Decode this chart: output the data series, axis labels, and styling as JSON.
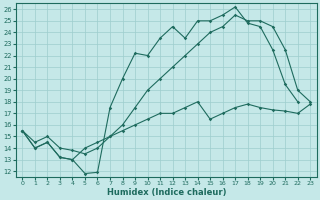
{
  "xlabel": "Humidex (Indice chaleur)",
  "xlim": [
    -0.5,
    23.5
  ],
  "ylim": [
    11.5,
    26.5
  ],
  "xticks": [
    0,
    1,
    2,
    3,
    4,
    5,
    6,
    7,
    8,
    9,
    10,
    11,
    12,
    13,
    14,
    15,
    16,
    17,
    18,
    19,
    20,
    21,
    22,
    23
  ],
  "yticks": [
    12,
    13,
    14,
    15,
    16,
    17,
    18,
    19,
    20,
    21,
    22,
    23,
    24,
    25,
    26
  ],
  "bg_color": "#c5e8e8",
  "line_color": "#1e6b5e",
  "grid_color": "#9ecece",
  "s1_x": [
    0,
    1,
    2,
    3,
    4,
    5,
    6,
    7,
    8,
    9,
    10,
    11,
    12,
    13,
    14,
    15,
    16,
    17,
    18,
    19,
    20,
    21,
    22
  ],
  "s1_y": [
    15.5,
    14.0,
    14.5,
    13.2,
    13.0,
    11.8,
    11.9,
    17.5,
    20.0,
    22.2,
    22.0,
    23.5,
    24.5,
    23.5,
    25.0,
    25.0,
    25.5,
    26.2,
    24.8,
    24.5,
    22.5,
    19.5,
    18.0
  ],
  "s2_x": [
    0,
    1,
    2,
    3,
    4,
    5,
    6,
    7,
    8,
    9,
    10,
    11,
    12,
    13,
    14,
    15,
    16,
    17,
    18,
    19,
    20,
    21,
    22,
    23
  ],
  "s2_y": [
    15.5,
    14.5,
    15.0,
    14.0,
    13.8,
    13.5,
    14.0,
    15.0,
    16.0,
    17.5,
    19.0,
    20.0,
    21.0,
    22.0,
    23.0,
    24.0,
    24.5,
    25.5,
    25.0,
    25.0,
    24.5,
    22.5,
    19.0,
    18.0
  ],
  "s3_x": [
    0,
    1,
    2,
    3,
    4,
    5,
    6,
    7,
    8,
    9,
    10,
    11,
    12,
    13,
    14,
    15,
    16,
    17,
    18,
    19,
    20,
    21,
    22,
    23
  ],
  "s3_y": [
    15.5,
    14.0,
    14.5,
    13.2,
    13.0,
    14.0,
    14.5,
    15.0,
    15.5,
    16.0,
    16.5,
    17.0,
    17.0,
    17.5,
    18.0,
    16.5,
    17.0,
    17.5,
    17.8,
    17.5,
    17.3,
    17.2,
    17.0,
    17.8
  ]
}
